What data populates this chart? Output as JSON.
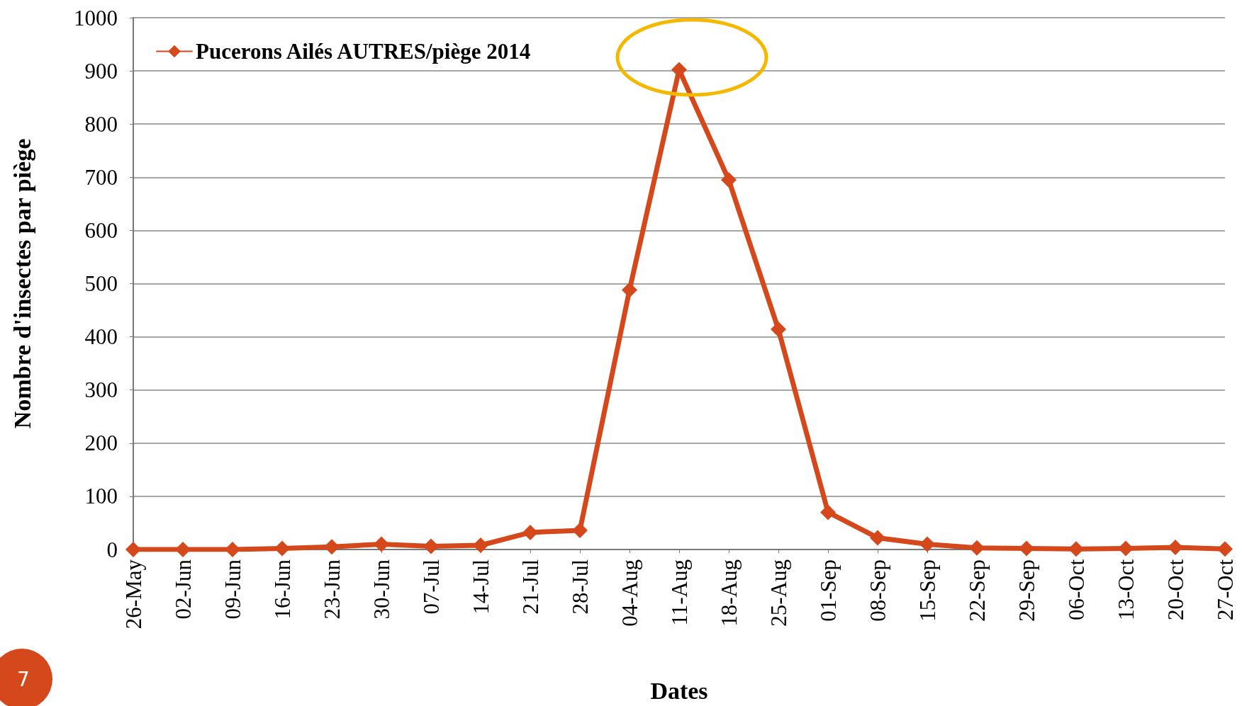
{
  "chart_data": {
    "type": "line",
    "xlabel": "Dates",
    "ylabel": "Nombre d'insectes par piège",
    "categories": [
      "26-May",
      "02-Jun",
      "09-Jun",
      "16-Jun",
      "23-Jun",
      "30-Jun",
      "07-Jul",
      "14-Jul",
      "21-Jul",
      "28-Jul",
      "04-Aug",
      "11-Aug",
      "18-Aug",
      "25-Aug",
      "01-Sep",
      "08-Sep",
      "15-Sep",
      "22-Sep",
      "29-Sep",
      "06-Oct",
      "13-Oct",
      "20-Oct",
      "27-Oct"
    ],
    "series": [
      {
        "name": "Pucerons Ailés AUTRES/piège 2014",
        "color": "#d5481c",
        "values": [
          0,
          0,
          0,
          2,
          5,
          10,
          6,
          8,
          32,
          36,
          488,
          902,
          695,
          414,
          70,
          22,
          10,
          3,
          2,
          1,
          2,
          4,
          1
        ]
      }
    ],
    "ylim": [
      0,
      1000
    ],
    "yticks": [
      0,
      100,
      200,
      300,
      400,
      500,
      600,
      700,
      800,
      900,
      1000
    ],
    "grid": "y",
    "legend": "top left",
    "marker": "diamond",
    "line_style": "solid",
    "annotations": [
      "7"
    ]
  }
}
